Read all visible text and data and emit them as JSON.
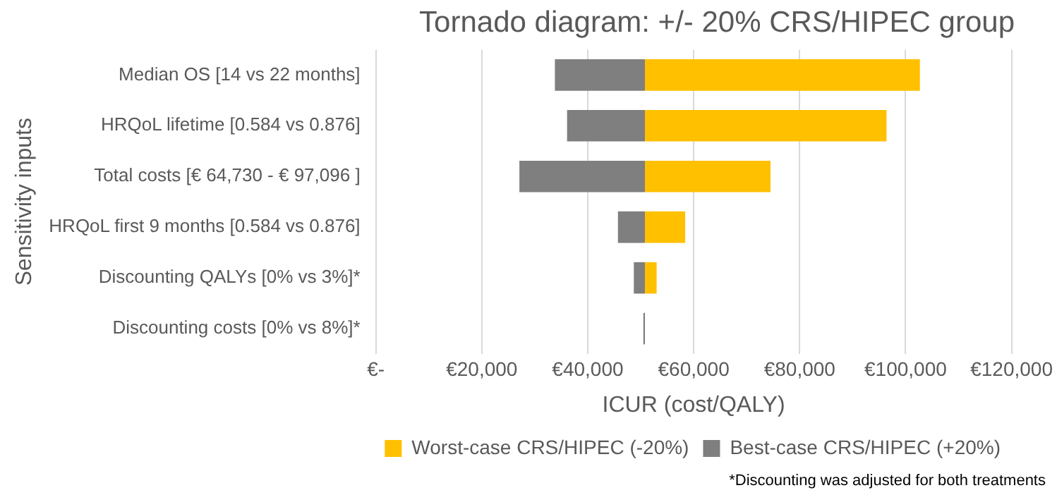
{
  "chart_data": {
    "type": "bar",
    "orientation": "horizontal",
    "title": "Tornado diagram: +/- 20% CRS/HIPEC group",
    "xlabel": "ICUR (cost/QALY)",
    "ylabel": "Sensitivity inputs",
    "categories": [
      "Median OS [14 vs 22 months]",
      "HRQoL lifetime [0.584 vs 0.876]",
      "Total costs [€ 64,730 - € 97,096 ]",
      "HRQoL first 9 months [0.584 vs 0.876]",
      "Discounting QALYs [0% vs 3%]*",
      "Discounting costs [0% vs 8%]*"
    ],
    "series": [
      {
        "name": "Worst-case CRS/HIPEC (-20%)",
        "color": "#ffc000",
        "base": [
          50800,
          50800,
          50800,
          50800,
          50800,
          null
        ],
        "values": [
          51900,
          45600,
          23700,
          7600,
          2200,
          null
        ]
      },
      {
        "name": "Best-case CRS/HIPEC (+20%)",
        "color": "#7f7f7f",
        "base": [
          50800,
          50800,
          50800,
          50800,
          50800,
          50800
        ],
        "values": [
          -17000,
          -14700,
          -23700,
          -5100,
          -2100,
          -300
        ]
      }
    ],
    "xlim": [
      0,
      120000
    ],
    "xticks": [
      {
        "value": 0,
        "label": "€-"
      },
      {
        "value": 20000,
        "label": "€20,000"
      },
      {
        "value": 40000,
        "label": "€40,000"
      },
      {
        "value": 60000,
        "label": "€60,000"
      },
      {
        "value": 80000,
        "label": "€80,000"
      },
      {
        "value": 100000,
        "label": "€100,000"
      },
      {
        "value": 120000,
        "label": "€120,000"
      }
    ],
    "grid": "x",
    "legend": "bottom",
    "annotations": [
      "*Discounting was adjusted for both treatments"
    ]
  }
}
